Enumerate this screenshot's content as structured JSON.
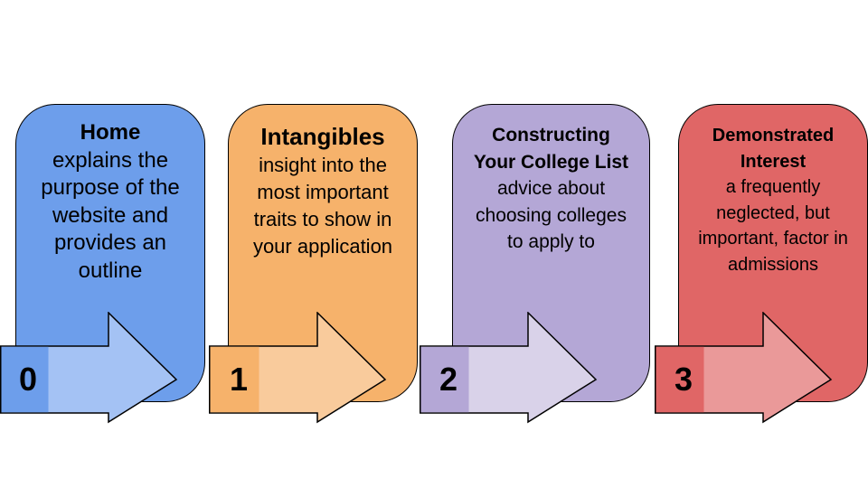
{
  "steps": [
    {
      "number": "0",
      "title": "Home",
      "description": "explains the purpose of the website and provides an outline",
      "card_color": "#6d9eeb",
      "arrow_color": "#a4c2f4",
      "number_bg": "#6d9eeb"
    },
    {
      "number": "1",
      "title": "Intangibles",
      "description": "insight into the most important traits to show in your application",
      "card_color": "#f6b26b",
      "arrow_color": "#f9cb9c",
      "number_bg": "#f6b26b"
    },
    {
      "number": "2",
      "title": "Constructing Your College List",
      "description": "advice about choosing colleges to apply to",
      "card_color": "#b4a7d6",
      "arrow_color": "#d9d2e9",
      "number_bg": "#b4a7d6"
    },
    {
      "number": "3",
      "title": "Demonstrated Interest",
      "description": "a frequently neglected, but important, factor in admissions",
      "card_color": "#e06666",
      "arrow_color": "#ea9999",
      "number_bg": "#e06666"
    }
  ]
}
